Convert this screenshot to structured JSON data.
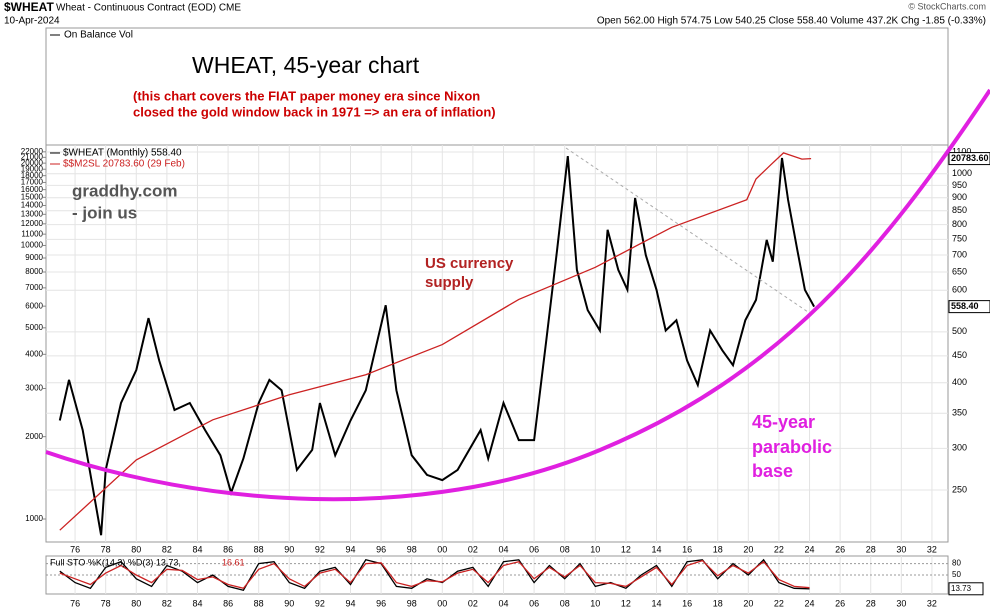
{
  "header": {
    "symbol": "$WHEAT",
    "description": "Wheat - Continuous Contract (EOD) CME",
    "date": "10-Apr-2024",
    "stats": "Open 562.00  High 574.75  Low 540.25  Close 558.40  Volume 437.2K  Chg -1.85 (-0.33%)",
    "copyright": "© StockCharts.com",
    "obv_label": "On Balance Vol"
  },
  "chart_data": [
    {
      "type": "line",
      "title": "WHEAT, 45-year chart",
      "subtitle": [
        "(this chart covers the FIAT paper money era since Nixon",
        "closed the gold window back in 1971 => an era of inflation)"
      ],
      "notes": {
        "website": [
          "graddhy.com",
          "- join us"
        ],
        "currency": [
          "US currency",
          "supply"
        ],
        "base": [
          "45-year",
          "parabolic",
          "base"
        ]
      },
      "log_scale": true,
      "grid": true,
      "xlim": [
        1974.1,
        2033.05
      ],
      "xticks": [
        {
          "value": 1976,
          "label": "76"
        },
        {
          "value": 1978,
          "label": "78"
        },
        {
          "value": 1980,
          "label": "80"
        },
        {
          "value": 1982,
          "label": "82"
        },
        {
          "value": 1984,
          "label": "84"
        },
        {
          "value": 1986,
          "label": "86"
        },
        {
          "value": 1988,
          "label": "88"
        },
        {
          "value": 1990,
          "label": "90"
        },
        {
          "value": 1992,
          "label": "92"
        },
        {
          "value": 1994,
          "label": "94"
        },
        {
          "value": 1996,
          "label": "96"
        },
        {
          "value": 1998,
          "label": "98"
        },
        {
          "value": 2000,
          "label": "00"
        },
        {
          "value": 2002,
          "label": "02"
        },
        {
          "value": 2004,
          "label": "04"
        },
        {
          "value": 2006,
          "label": "06"
        },
        {
          "value": 2008,
          "label": "08"
        },
        {
          "value": 2010,
          "label": "10"
        },
        {
          "value": 2012,
          "label": "12"
        },
        {
          "value": 2014,
          "label": "14"
        },
        {
          "value": 2016,
          "label": "16"
        },
        {
          "value": 2018,
          "label": "18"
        },
        {
          "value": 2020,
          "label": "20"
        },
        {
          "value": 2022,
          "label": "22"
        },
        {
          "value": 2024,
          "label": "24"
        },
        {
          "value": 2026,
          "label": "26"
        },
        {
          "value": 2028,
          "label": "28"
        },
        {
          "value": 2030,
          "label": "30"
        },
        {
          "value": 2032,
          "label": "32"
        }
      ],
      "ylim": [
        824,
        23300
      ],
      "yticks": [
        1000,
        2000,
        3000,
        4000,
        5000,
        6000,
        7000,
        8000,
        9000,
        10000,
        11000,
        12000,
        13000,
        14000,
        15000,
        16000,
        17000,
        18000,
        19000,
        20000,
        21000,
        22000
      ],
      "y2lim": [
        199,
        1134
      ],
      "y2ticks": [
        250,
        300,
        350,
        400,
        450,
        500,
        600,
        650,
        700,
        750,
        800,
        850,
        900,
        950,
        1000,
        1100
      ],
      "series": [
        {
          "name": "$WHEAT (Monthly) 558.40",
          "color": "#000000",
          "axis": "y2",
          "tag": "558.40",
          "x": [
            1975,
            1975.6,
            1976.5,
            1977.7,
            1978,
            1979,
            1980,
            1980.8,
            1981.5,
            1982.5,
            1983.5,
            1984.5,
            1985.5,
            1986.2,
            1987,
            1988,
            1988.7,
            1989.5,
            1990.5,
            1991.5,
            1992,
            1993,
            1994,
            1995,
            1996.3,
            1997,
            1998,
            1999,
            2000,
            2001,
            2002.5,
            2003,
            2004,
            2005,
            2006,
            2006.8,
            2007.5,
            2008.2,
            2008.8,
            2009.5,
            2010.3,
            2010.8,
            2011.5,
            2012.1,
            2012.6,
            2013.3,
            2014,
            2014.6,
            2015.3,
            2016,
            2016.7,
            2017.5,
            2018.3,
            2019,
            2019.8,
            2020.5,
            2021.2,
            2021.6,
            2022.2,
            2022.6,
            2023.2,
            2023.7,
            2024.3
          ],
          "values": [
            339,
            405,
            325,
            205,
            273,
            366,
            423,
            531,
            441,
            355,
            366,
            325,
            291,
            247,
            287,
            366,
            405,
            387,
            273,
            298,
            366,
            291,
            339,
            387,
            562,
            387,
            291,
            267,
            261,
            273,
            325,
            287,
            366,
            311,
            311,
            482,
            716,
            1080,
            656,
            550,
            503,
            782,
            656,
            601,
            899,
            700,
            601,
            503,
            526,
            441,
            396,
            503,
            461,
            432,
            526,
            575,
            748,
            680,
            1071,
            891,
            716,
            601,
            558.4
          ]
        },
        {
          "name": "$$M2SL 20783.60 (29 Feb)",
          "color": "#cc2222",
          "axis": "y",
          "tag": "20783.60",
          "x": [
            1975,
            1980,
            1985,
            1990,
            1995,
            2000,
            2005,
            2010,
            2015,
            2019.9,
            2020.5,
            2021.5,
            2022.3,
            2023.5,
            2024.1
          ],
          "values": [
            910,
            1645,
            2305,
            2844,
            3370,
            4340,
            6350,
            8324,
            11650,
            14700,
            17500,
            19800,
            21800,
            20700,
            20783.6
          ]
        }
      ]
    },
    {
      "type": "line",
      "legend_text": "Full STO %K(14,3) %D(3) 13.73,",
      "legend_d": "16.61",
      "tag": "13.73",
      "xlim": [
        1974.1,
        2033.05
      ],
      "ylim": [
        0,
        100
      ],
      "yticks": [
        50,
        80
      ],
      "xticks": [
        {
          "value": 1976,
          "label": "76"
        },
        {
          "value": 1978,
          "label": "78"
        },
        {
          "value": 1980,
          "label": "80"
        },
        {
          "value": 1982,
          "label": "82"
        },
        {
          "value": 1984,
          "label": "84"
        },
        {
          "value": 1986,
          "label": "86"
        },
        {
          "value": 1988,
          "label": "88"
        },
        {
          "value": 1990,
          "label": "90"
        },
        {
          "value": 1992,
          "label": "92"
        },
        {
          "value": 1994,
          "label": "94"
        },
        {
          "value": 1996,
          "label": "96"
        },
        {
          "value": 1998,
          "label": "98"
        },
        {
          "value": 2000,
          "label": "00"
        },
        {
          "value": 2002,
          "label": "02"
        },
        {
          "value": 2004,
          "label": "04"
        },
        {
          "value": 2006,
          "label": "06"
        },
        {
          "value": 2008,
          "label": "08"
        },
        {
          "value": 2010,
          "label": "10"
        },
        {
          "value": 2012,
          "label": "12"
        },
        {
          "value": 2014,
          "label": "14"
        },
        {
          "value": 2016,
          "label": "16"
        },
        {
          "value": 2018,
          "label": "18"
        },
        {
          "value": 2020,
          "label": "20"
        },
        {
          "value": 2022,
          "label": "22"
        },
        {
          "value": 2024,
          "label": "24"
        },
        {
          "value": 2026,
          "label": "26"
        },
        {
          "value": 2028,
          "label": "28"
        },
        {
          "value": 2030,
          "label": "30"
        },
        {
          "value": 2032,
          "label": "32"
        }
      ],
      "x": [
        1975,
        1976,
        1977,
        1978,
        1979,
        1980,
        1981,
        1982,
        1983,
        1984,
        1985,
        1986,
        1987,
        1988,
        1989,
        1990,
        1991,
        1992,
        1993,
        1994,
        1995,
        1996,
        1997,
        1998,
        1999,
        2000,
        2001,
        2002,
        2003,
        2004,
        2005,
        2006,
        2007,
        2008,
        2009,
        2010,
        2011,
        2012,
        2013,
        2014,
        2015,
        2016,
        2017,
        2018,
        2019,
        2020,
        2021,
        2022,
        2023,
        2024
      ],
      "series": [
        {
          "color": "#000000",
          "values": [
            60,
            30,
            15,
            70,
            85,
            40,
            20,
            75,
            60,
            30,
            50,
            20,
            10,
            80,
            85,
            30,
            15,
            60,
            70,
            25,
            90,
            80,
            20,
            15,
            40,
            30,
            60,
            70,
            20,
            85,
            90,
            30,
            75,
            40,
            80,
            20,
            30,
            15,
            50,
            75,
            20,
            85,
            90,
            40,
            80,
            50,
            90,
            30,
            15,
            13.73
          ]
        },
        {
          "color": "#cc2222",
          "values": [
            55,
            40,
            25,
            55,
            75,
            50,
            30,
            65,
            62,
            38,
            45,
            25,
            15,
            65,
            80,
            40,
            20,
            55,
            65,
            30,
            80,
            82,
            30,
            20,
            35,
            32,
            55,
            65,
            30,
            75,
            85,
            40,
            70,
            45,
            75,
            30,
            28,
            20,
            45,
            70,
            25,
            75,
            88,
            48,
            75,
            55,
            85,
            38,
            20,
            16.61
          ]
        }
      ]
    }
  ]
}
